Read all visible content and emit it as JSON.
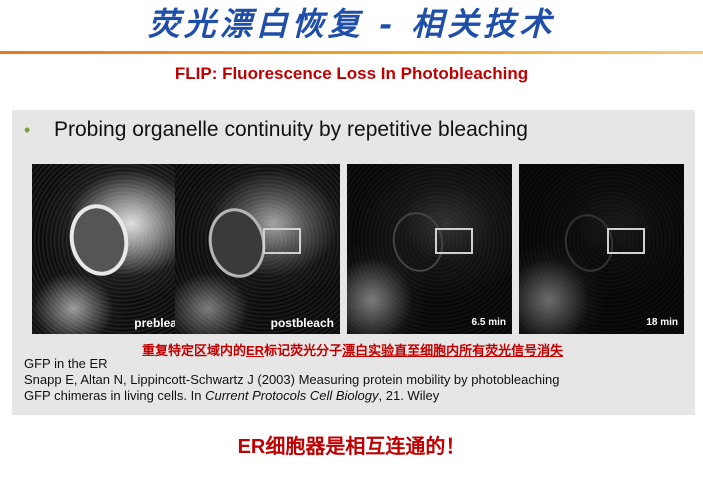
{
  "slide": {
    "title": "荧光漂白恢复 - 相关技术",
    "subtitle": "FLIP: Fluorescence Loss In Photobleaching",
    "conclusion": "ER细胞器是相互连通的！"
  },
  "panel": {
    "bullet_symbol": "•",
    "bullet_text": "Probing organelle continuity by repetitive bleaching",
    "images": [
      {
        "label": "prebleach"
      },
      {
        "label": "postbleach"
      },
      {
        "label": "6.5 min"
      },
      {
        "label": "18 min"
      }
    ],
    "caption_prefix": "重复特定区域内的",
    "caption_er": "ER",
    "caption_mid": "标记荧光分子",
    "caption_suffix": "漂白实验直至细胞内所有荧光信号消失",
    "figure_label": "GFP in the ER",
    "reference_line1": "Snapp E, Altan N, Lippincott-Schwartz J (2003) Measuring protein mobility by photobleaching",
    "reference_line2_start": "GFP chimeras in living cells. In ",
    "reference_line2_italic": "Current Protocols Cell Biology",
    "reference_line2_end": ", 21. Wiley"
  },
  "colors": {
    "title": "#1f4fa8",
    "accent_rule": "#e87722",
    "emphasis_red": "#c00000",
    "bullet": "#7aa23c",
    "panel_bg": "#e6e6e6"
  }
}
